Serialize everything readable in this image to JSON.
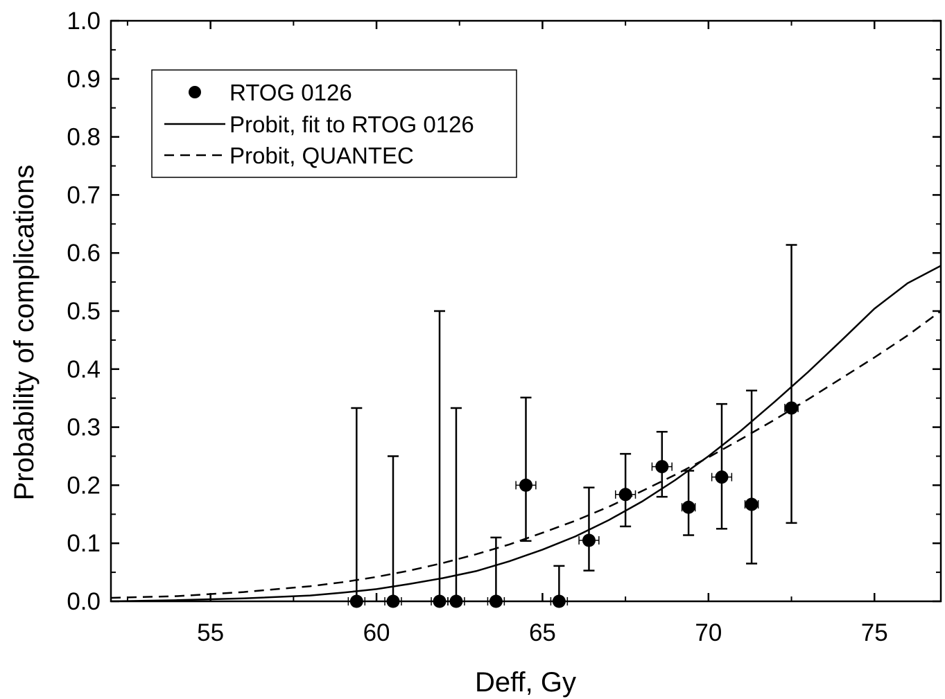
{
  "chart_data": {
    "type": "scatter",
    "xlabel": "Deff, Gy",
    "ylabel": "Probability of complications",
    "xlim": [
      52,
      77
    ],
    "ylim": [
      0,
      1.0
    ],
    "x_ticks": [
      55,
      60,
      65,
      70,
      75
    ],
    "x_tick_labels": [
      "55",
      "60",
      "65",
      "70",
      "75"
    ],
    "y_ticks": [
      0,
      0.1,
      0.2,
      0.3,
      0.4,
      0.5,
      0.6,
      0.7,
      0.8,
      0.9,
      1.0
    ],
    "y_tick_labels": [
      "0.0",
      "0.1",
      "0.2",
      "0.3",
      "0.4",
      "0.5",
      "0.6",
      "0.7",
      "0.8",
      "0.9",
      "1.0"
    ],
    "grid": false,
    "legend_position": "top-left",
    "series": [
      {
        "name": "RTOG 0126",
        "kind": "points",
        "color": "#000000",
        "points": [
          {
            "x": 59.4,
            "y": 0.0,
            "y_err_low": 0.0,
            "y_err_high": 0.333,
            "x_err": 0.0
          },
          {
            "x": 60.5,
            "y": 0.0,
            "y_err_low": 0.0,
            "y_err_high": 0.25,
            "x_err": 0.0
          },
          {
            "x": 61.9,
            "y": 0.0,
            "y_err_low": 0.0,
            "y_err_high": 0.5,
            "x_err": 0.0
          },
          {
            "x": 62.4,
            "y": 0.0,
            "y_err_low": 0.0,
            "y_err_high": 0.333,
            "x_err": 0.0
          },
          {
            "x": 63.6,
            "y": 0.0,
            "y_err_low": 0.0,
            "y_err_high": 0.11,
            "x_err": 0.0
          },
          {
            "x": 64.5,
            "y": 0.2,
            "y_err_low": 0.104,
            "y_err_high": 0.351,
            "x_err": 0.3
          },
          {
            "x": 65.5,
            "y": 0.0,
            "y_err_low": 0.0,
            "y_err_high": 0.061,
            "x_err": 0.0
          },
          {
            "x": 66.4,
            "y": 0.105,
            "y_err_low": 0.053,
            "y_err_high": 0.196,
            "x_err": 0.3
          },
          {
            "x": 67.5,
            "y": 0.184,
            "y_err_low": 0.129,
            "y_err_high": 0.254,
            "x_err": 0.3
          },
          {
            "x": 68.6,
            "y": 0.232,
            "y_err_low": 0.18,
            "y_err_high": 0.292,
            "x_err": 0.3
          },
          {
            "x": 69.4,
            "y": 0.162,
            "y_err_low": 0.114,
            "y_err_high": 0.225,
            "x_err": 0.2
          },
          {
            "x": 70.4,
            "y": 0.214,
            "y_err_low": 0.125,
            "y_err_high": 0.34,
            "x_err": 0.3
          },
          {
            "x": 71.3,
            "y": 0.167,
            "y_err_low": 0.065,
            "y_err_high": 0.363,
            "x_err": 0.2
          },
          {
            "x": 72.5,
            "y": 0.333,
            "y_err_low": 0.135,
            "y_err_high": 0.614,
            "x_err": 0.2
          }
        ]
      },
      {
        "name": "Probit, fit to RTOG 0126",
        "kind": "line",
        "style": "solid",
        "color": "#000000",
        "x": [
          52,
          54,
          56,
          58,
          59,
          60,
          61,
          62,
          63,
          64,
          65,
          66,
          67,
          68,
          69,
          70,
          71,
          72,
          73,
          74,
          75,
          76,
          77
        ],
        "y": [
          0.0,
          0.002,
          0.005,
          0.01,
          0.015,
          0.021,
          0.03,
          0.04,
          0.052,
          0.069,
          0.089,
          0.112,
          0.14,
          0.172,
          0.209,
          0.25,
          0.295,
          0.344,
          0.395,
          0.449,
          0.504,
          0.548,
          0.578
        ]
      },
      {
        "name": "Probit, QUANTEC",
        "kind": "line",
        "style": "dashed",
        "color": "#000000",
        "x": [
          52,
          54,
          56,
          58,
          59,
          60,
          61,
          62,
          63,
          64,
          65,
          66,
          67,
          68,
          69,
          70,
          71,
          72,
          73,
          74,
          75,
          76,
          77
        ],
        "y": [
          0.006,
          0.009,
          0.016,
          0.026,
          0.033,
          0.042,
          0.053,
          0.066,
          0.081,
          0.098,
          0.118,
          0.139,
          0.163,
          0.19,
          0.218,
          0.248,
          0.28,
          0.313,
          0.348,
          0.384,
          0.42,
          0.458,
          0.5
        ]
      }
    ]
  }
}
